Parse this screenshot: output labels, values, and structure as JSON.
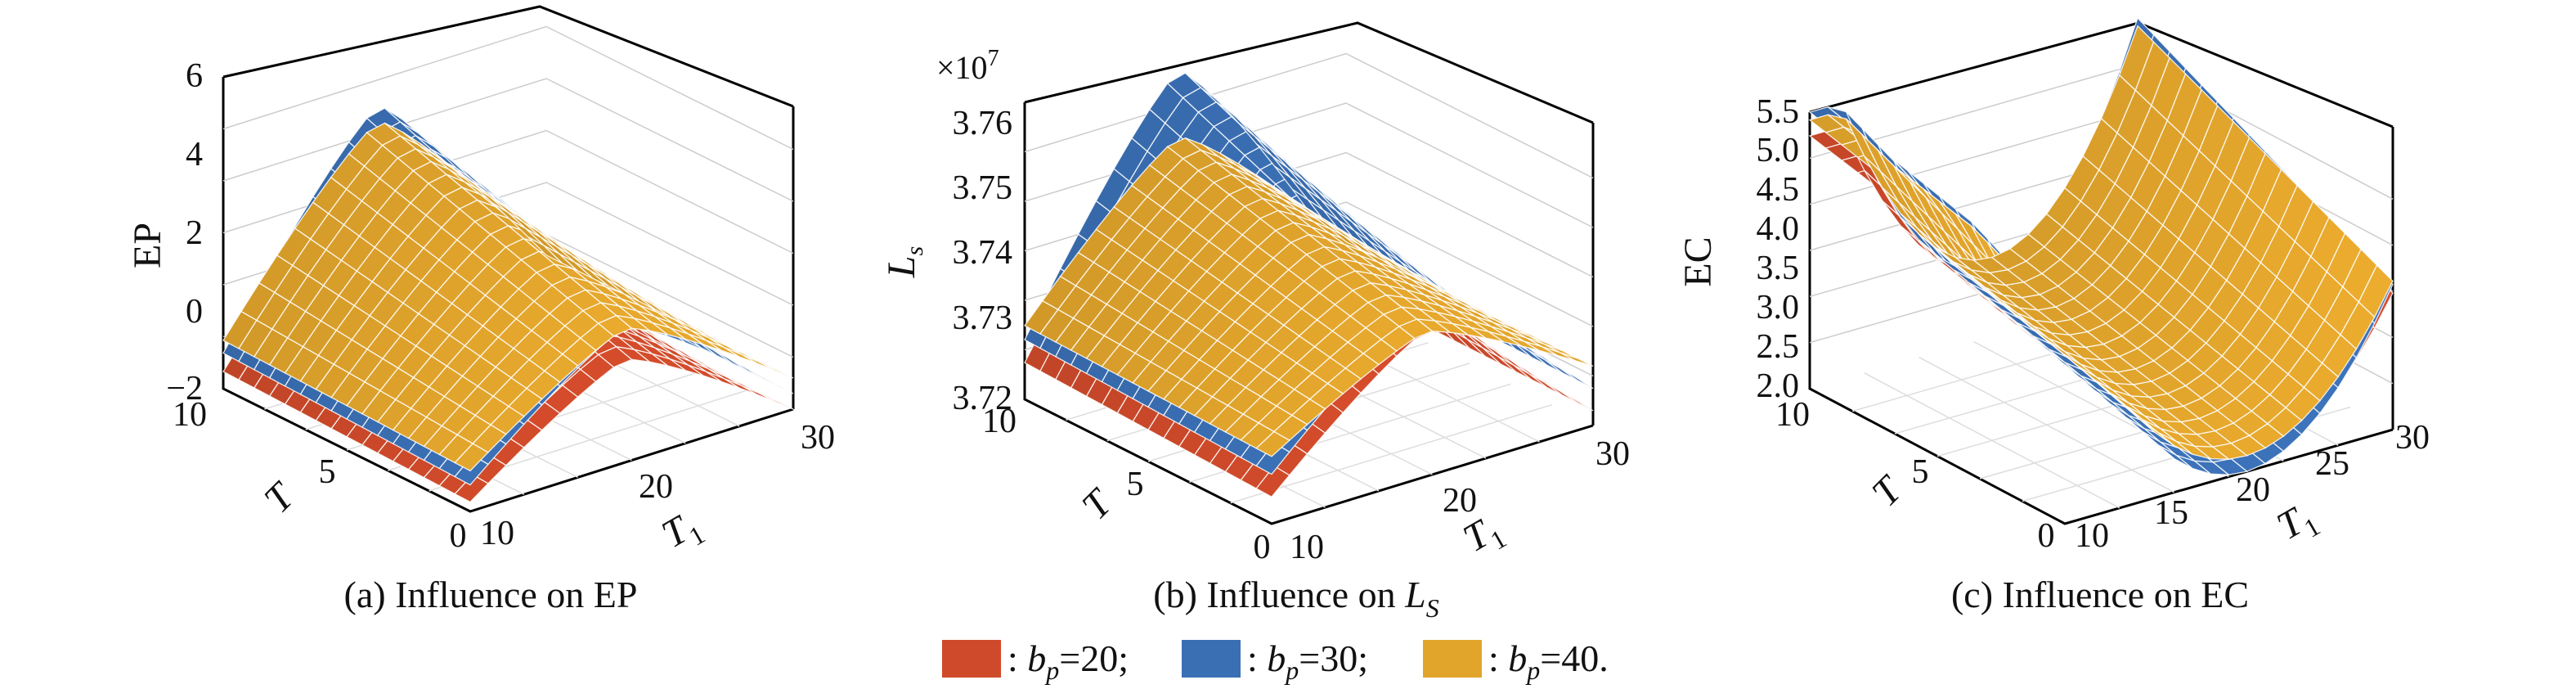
{
  "figure": {
    "legend": {
      "items": [
        {
          "prefix": ": ",
          "var": "b",
          "sub": "p",
          "rest": "=20;",
          "color": "#cf4a2a"
        },
        {
          "prefix": ": ",
          "var": "b",
          "sub": "p",
          "rest": "=30;",
          "color": "#3a6fb4"
        },
        {
          "prefix": ": ",
          "var": "b",
          "sub": "p",
          "rest": "=40.",
          "color": "#e2a52c"
        }
      ]
    }
  },
  "chart_data": [
    {
      "type": "surface",
      "id": "a",
      "title": "(a) Influence on EP",
      "caption_prefix": "(a) Influence on ",
      "caption_var": "EP",
      "caption_sub": "",
      "xlabel": "T",
      "ylabel": "T",
      "ylabel_sub": "1",
      "zlabel": "EP",
      "zlabel_sub": "",
      "x_ticks": [
        "0",
        "5",
        "10"
      ],
      "y_ticks": [
        "10",
        "20",
        "30"
      ],
      "z_ticks": [
        "6",
        "4",
        "2",
        "0",
        "−2"
      ],
      "xlim": [
        0,
        10
      ],
      "ylim": [
        10,
        30
      ],
      "zlim": [
        -2,
        6
      ],
      "series": [
        {
          "name": "b_p=20",
          "color": "#cf4a2a",
          "z_peak": 2.8,
          "z_edge": -2.0
        },
        {
          "name": "b_p=30",
          "color": "#3a6fb4",
          "z_peak": 4.0,
          "z_edge": -1.6
        },
        {
          "name": "b_p=40",
          "color": "#e2a52c",
          "z_peak": 3.6,
          "z_edge": -1.2
        }
      ]
    },
    {
      "type": "surface",
      "id": "b",
      "title": "(b) Influence on L_S",
      "caption_prefix": "(b) Influence on ",
      "caption_var": "L",
      "caption_sub": "S",
      "xlabel": "T",
      "ylabel": "T",
      "ylabel_sub": "1",
      "zlabel": "L",
      "zlabel_sub": "s",
      "scale_label": "×10",
      "scale_exp": "7",
      "x_ticks": [
        "0",
        "5",
        "10"
      ],
      "y_ticks": [
        "10",
        "20",
        "30"
      ],
      "z_ticks": [
        "3.76",
        "3.75",
        "3.74",
        "3.73",
        "3.72"
      ],
      "xlim": [
        0,
        10
      ],
      "ylim": [
        10,
        30
      ],
      "zlim": [
        3.72,
        3.76
      ],
      "series": [
        {
          "name": "b_p=20",
          "color": "#cf4a2a",
          "z_peak": 3.754,
          "z_edge": 3.722
        },
        {
          "name": "b_p=30",
          "color": "#3a6fb4",
          "z_peak": 3.758,
          "z_edge": 3.725
        },
        {
          "name": "b_p=40",
          "color": "#e2a52c",
          "z_peak": 3.749,
          "z_edge": 3.728
        }
      ]
    },
    {
      "type": "surface",
      "id": "c",
      "title": "(c) Influence on EC",
      "caption_prefix": "(c) Influence on ",
      "caption_var": "EC",
      "caption_sub": "",
      "xlabel": "T",
      "ylabel": "T",
      "ylabel_sub": "1",
      "zlabel": "EC",
      "zlabel_sub": "",
      "x_ticks": [
        "0",
        "5",
        "10"
      ],
      "y_ticks": [
        "10",
        "15",
        "20",
        "25",
        "30"
      ],
      "z_ticks": [
        "5.5",
        "5.0",
        "4.5",
        "4.0",
        "3.5",
        "3.0",
        "2.5",
        "2.0"
      ],
      "xlim": [
        0,
        10
      ],
      "ylim": [
        10,
        30
      ],
      "zlim": [
        2.0,
        5.5
      ],
      "series": [
        {
          "name": "b_p=20",
          "color": "#cf4a2a",
          "z_min": 2.1,
          "z_max": 5.2
        },
        {
          "name": "b_p=30",
          "color": "#3a6fb4",
          "z_min": 2.0,
          "z_max": 5.5
        },
        {
          "name": "b_p=40",
          "color": "#e2a52c",
          "z_min": 2.2,
          "z_max": 5.4
        }
      ]
    }
  ]
}
